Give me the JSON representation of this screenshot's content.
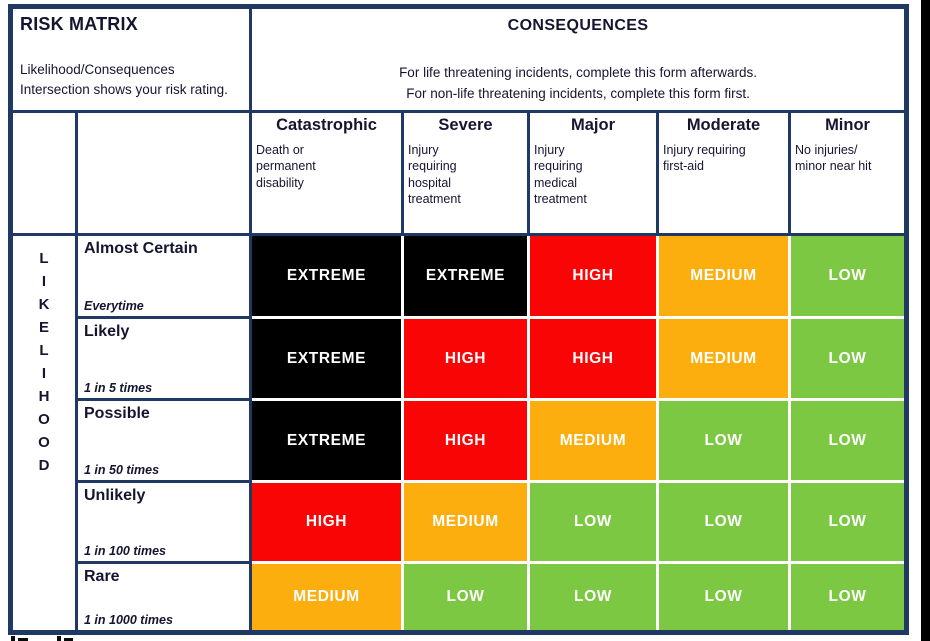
{
  "title_block": {
    "title": "RISK MATRIX",
    "subtitle": "Likelihood/Consequences Intersection shows your risk rating."
  },
  "consequences_block": {
    "title": "CONSEQUENCES",
    "line1": "For life threatening incidents, complete this form afterwards.",
    "line2": "For non-life threatening incidents, complete this form first."
  },
  "likelihood_axis": {
    "label": "LIKELIHOOD",
    "letters": [
      "L",
      "I",
      "K",
      "E",
      "L",
      "I",
      "H",
      "O",
      "O",
      "D"
    ]
  },
  "columns": [
    {
      "name": "Catastrophic",
      "description": "Death or permanent disability"
    },
    {
      "name": "Severe",
      "description": "Injury requiring hospital treatment"
    },
    {
      "name": "Major",
      "description": "Injury requiring medical treatment"
    },
    {
      "name": "Moderate",
      "description": "Injury requiring first-aid"
    },
    {
      "name": "Minor",
      "description": "No injuries/ minor near hit"
    }
  ],
  "rows": [
    {
      "name": "Almost Certain",
      "frequency": "Everytime"
    },
    {
      "name": "Likely",
      "frequency": "1 in 5 times"
    },
    {
      "name": "Possible",
      "frequency": "1 in 50 times"
    },
    {
      "name": "Unlikely",
      "frequency": "1 in 100 times"
    },
    {
      "name": "Rare",
      "frequency": "1 in 1000 times"
    }
  ],
  "chart_data": {
    "type": "heatmap",
    "title": "RISK MATRIX",
    "xlabel": "CONSEQUENCES",
    "ylabel": "LIKELIHOOD",
    "x_categories": [
      "Catastrophic",
      "Severe",
      "Major",
      "Moderate",
      "Minor"
    ],
    "y_categories": [
      "Almost Certain",
      "Likely",
      "Possible",
      "Unlikely",
      "Rare"
    ],
    "values": [
      [
        "EXTREME",
        "EXTREME",
        "HIGH",
        "MEDIUM",
        "LOW"
      ],
      [
        "EXTREME",
        "HIGH",
        "HIGH",
        "MEDIUM",
        "LOW"
      ],
      [
        "EXTREME",
        "HIGH",
        "MEDIUM",
        "LOW",
        "LOW"
      ],
      [
        "HIGH",
        "MEDIUM",
        "LOW",
        "LOW",
        "LOW"
      ],
      [
        "MEDIUM",
        "LOW",
        "LOW",
        "LOW",
        "LOW"
      ]
    ],
    "legend_position": "none",
    "grid": true
  },
  "colors": {
    "EXTREME": "#000000",
    "HIGH": "#FA0506",
    "MEDIUM": "#FBAE0D",
    "LOW": "#7DC843",
    "border": "#1F3864",
    "cell_text": "#FFFFFF",
    "header_text": "#151530"
  }
}
